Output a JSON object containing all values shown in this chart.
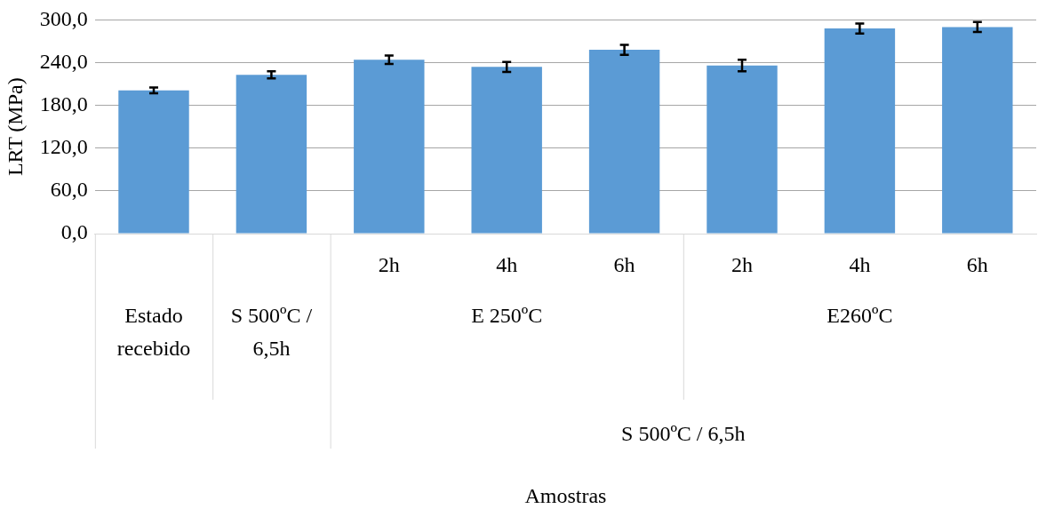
{
  "chart_data": {
    "type": "bar",
    "ylabel": "LRT (MPa)",
    "categories": [
      null,
      null,
      "2h",
      "4h",
      "6h",
      "2h",
      "4h",
      "6h"
    ],
    "values": [
      201,
      223,
      244,
      234,
      258,
      236,
      288,
      290
    ],
    "errors": [
      4,
      5,
      6,
      7,
      7,
      8,
      7,
      7
    ],
    "color": "#5b9bd5",
    "ylim": [
      0,
      300
    ],
    "yticks": [
      {
        "value": 0,
        "label": "0,0"
      },
      {
        "value": 60,
        "label": "60,0"
      },
      {
        "value": 120,
        "label": "120,0"
      },
      {
        "value": 180,
        "label": "180,0"
      },
      {
        "value": 240,
        "label": "240,0"
      },
      {
        "value": 300,
        "label": "300,0"
      }
    ],
    "grid": "y",
    "annotations": [
      "Estado recebido",
      "S 500ºC / 6,5h",
      "E 250ºC",
      "E260ºC",
      "S 500ºC / 6,5h",
      "Amostras"
    ]
  }
}
